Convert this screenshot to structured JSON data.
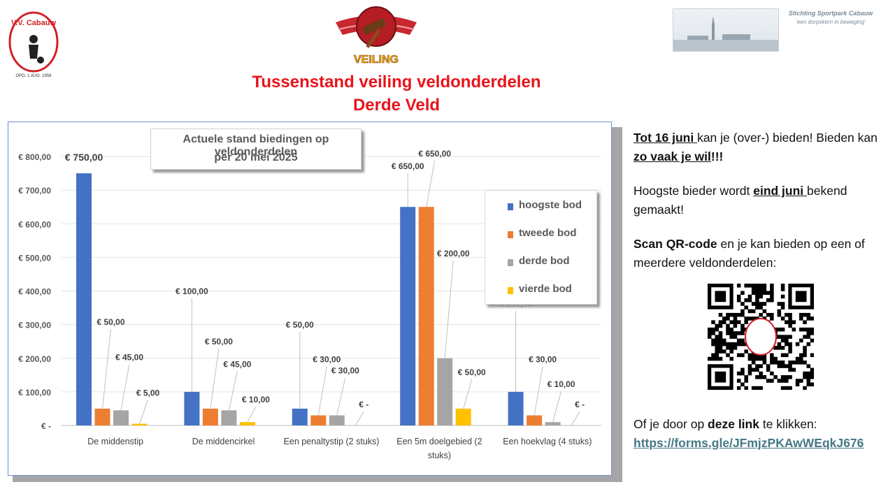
{
  "header": {
    "club_logo_text": "V.V. Cabauw",
    "club_logo_subtext": "OPG. 1 AUG. 1958",
    "auction_logo_text": "VEILING",
    "sponsor_name": "Stichting Sportpark Cabauw",
    "sponsor_tagline": "'een dorpskern in beweging'",
    "title_line1": "Tussenstand veiling veldonderdelen",
    "title_line2": "Derde Veld"
  },
  "colors": {
    "title_red": "#e8141b",
    "series": [
      "#4472c4",
      "#ed7d31",
      "#a5a5a5",
      "#ffc000"
    ],
    "link": "#467886"
  },
  "chart_data": {
    "type": "bar",
    "title_line1": "Actuele stand biedingen op veldonderdelen",
    "title_line2": "per 20 mei 2025",
    "categories": [
      [
        "De middenstip"
      ],
      [
        "De middencirkel"
      ],
      [
        "Een penaltystip   (2 stuks)"
      ],
      [
        "Een 5m doelgebied   (2",
        "stuks)"
      ],
      [
        "Een hoekvlag (4 stuks)"
      ]
    ],
    "series": [
      {
        "name": "hoogste bod",
        "values": [
          750,
          100,
          50,
          650,
          100
        ],
        "labels": [
          "€ 750,00",
          "€ 100,00",
          "€ 50,00",
          "€ 650,00",
          "€ 100,00"
        ]
      },
      {
        "name": "tweede bod",
        "values": [
          50,
          50,
          30,
          650,
          30
        ],
        "labels": [
          "€ 50,00",
          "€ 50,00",
          "€ 30,00",
          "€ 650,00",
          "€ 30,00"
        ]
      },
      {
        "name": "derde bod",
        "values": [
          45,
          45,
          30,
          200,
          10
        ],
        "labels": [
          "€ 45,00",
          "€ 45,00",
          "€ 30,00",
          "€ 200,00",
          "€ 10,00"
        ]
      },
      {
        "name": "vierde bod",
        "values": [
          5,
          10,
          0,
          50,
          0
        ],
        "labels": [
          "€ 5,00",
          "€ 10,00",
          "€ -",
          "€ 50,00",
          "€ -"
        ]
      }
    ],
    "y_ticks": [
      0,
      100,
      200,
      300,
      400,
      500,
      600,
      700,
      800
    ],
    "y_tick_labels": [
      "€ -",
      "€ 100,00",
      "€ 200,00",
      "€ 300,00",
      "€ 400,00",
      "€ 500,00",
      "€ 600,00",
      "€ 700,00",
      "€ 800,00"
    ],
    "ylim": [
      0,
      800
    ],
    "grid": true,
    "legend_position": "right"
  },
  "panel": {
    "p1_a": "Tot 16 juni ",
    "p1_b": "kan je (over-) bieden! Bieden kan ",
    "p1_c": "zo vaak je wil",
    "p1_d": "!!!",
    "p2_a": "Hoogste bieder wordt ",
    "p2_b": "eind juni ",
    "p2_c": "bekend gemaakt!",
    "p3_a": "Scan QR-code",
    "p3_b": " en je kan bieden op een of meerdere veldonderdelen:",
    "p4_a": "Of je door op ",
    "p4_b": "deze link",
    "p4_c": " te klikken:",
    "link": "https://forms.gle/JFmjzPKAwWEqkJ676"
  }
}
